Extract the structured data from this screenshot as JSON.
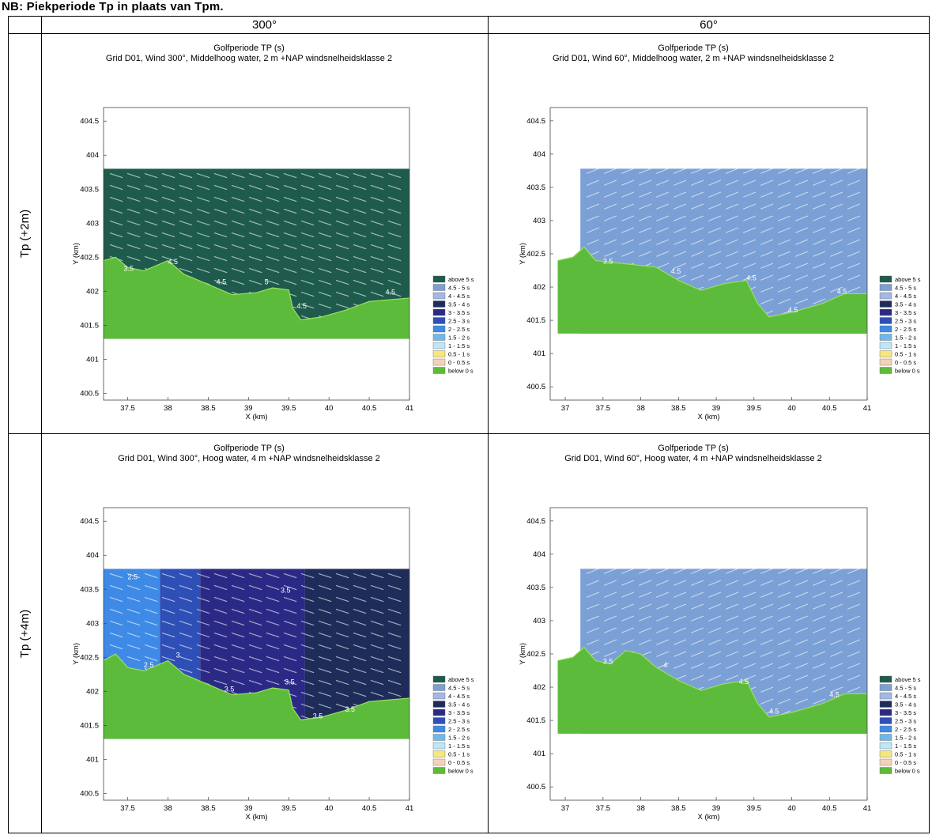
{
  "caption": "NB: Piekperiode Tp in plaats van Tpm.",
  "columns": [
    "300°",
    "60°"
  ],
  "rows": [
    "Tp (+2m)",
    "Tp (+4m)"
  ],
  "legend": {
    "labels": [
      "above 5 s",
      "4.5 - 5 s",
      "4 - 4.5 s",
      "3.5 - 4 s",
      "3 - 3.5 s",
      "2.5 - 3 s",
      "2 - 2.5 s",
      "1.5 - 2 s",
      "1 - 1.5 s",
      "0.5 - 1 s",
      "0 - 0.5 s",
      "below 0 s"
    ],
    "colors": [
      "#1e5b4c",
      "#7ba0d6",
      "#a3b7e8",
      "#1e2c5a",
      "#2a2a86",
      "#2e4fb6",
      "#3e8ae6",
      "#6fb8ee",
      "#bfe6f6",
      "#f6e77c",
      "#f6d2b4",
      "#5dbb3c"
    ]
  },
  "chart_data": [
    {
      "type": "heatmap",
      "title": "Golfperiode TP (s)",
      "subtitle": "Grid  D01, Wind 300°, Middelhoog water, 2 m +NAP windsnelheidsklasse 2",
      "xlabel": "X (km)",
      "ylabel": "Y (km)",
      "xlim": [
        37.2,
        41
      ],
      "ylim": [
        400.4,
        404.7
      ],
      "xticks": [
        "37.5",
        "38",
        "38.5",
        "39",
        "39.5",
        "40",
        "40.5",
        "41"
      ],
      "yticks": [
        "400.5",
        "401",
        "401.5",
        "402",
        "402.5",
        "403",
        "403.5",
        "404",
        "404.5"
      ],
      "water_top": 403.8,
      "land_bottom": 401.3,
      "wind_dir_deg": 300,
      "coastline": [
        [
          37.2,
          402.45
        ],
        [
          37.35,
          402.5
        ],
        [
          37.5,
          402.35
        ],
        [
          37.7,
          402.3
        ],
        [
          38.0,
          402.45
        ],
        [
          38.2,
          402.25
        ],
        [
          38.5,
          402.1
        ],
        [
          38.8,
          401.95
        ],
        [
          39.1,
          401.98
        ],
        [
          39.3,
          402.05
        ],
        [
          39.5,
          402.02
        ],
        [
          39.55,
          401.75
        ],
        [
          39.65,
          401.58
        ],
        [
          39.9,
          401.62
        ],
        [
          40.2,
          401.72
        ],
        [
          40.5,
          401.85
        ],
        [
          41.0,
          401.9
        ]
      ],
      "zones": [
        {
          "x0": 37.2,
          "x1": 41,
          "color": "#1e5b4c"
        }
      ],
      "contour_labels": [
        {
          "text": "3.5",
          "x": 37.45,
          "y": 402.3
        },
        {
          "text": "4.5",
          "x": 38.0,
          "y": 402.4
        },
        {
          "text": "4.5",
          "x": 38.6,
          "y": 402.1
        },
        {
          "text": "5",
          "x": 39.2,
          "y": 402.1
        },
        {
          "text": "4.5",
          "x": 39.6,
          "y": 401.75
        },
        {
          "text": "4.5",
          "x": 40.7,
          "y": 401.95
        }
      ]
    },
    {
      "type": "heatmap",
      "title": "Golfperiode TP (s)",
      "subtitle": "Grid  D01, Wind 60°, Middelhoog water, 2 m +NAP windsnelheidsklasse 2",
      "xlabel": "X (km)",
      "ylabel": "Y (km)",
      "xlim": [
        36.8,
        41
      ],
      "ylim": [
        400.3,
        404.7
      ],
      "xticks": [
        "37",
        "37.5",
        "38",
        "38.5",
        "39",
        "39.5",
        "40",
        "40.5",
        "41"
      ],
      "yticks": [
        "400.5",
        "401",
        "401.5",
        "402",
        "402.5",
        "403",
        "403.5",
        "404",
        "404.5"
      ],
      "water_top": 403.78,
      "land_bottom": 401.3,
      "wind_dir_deg": 60,
      "coastline": [
        [
          36.9,
          402.4
        ],
        [
          37.1,
          402.45
        ],
        [
          37.25,
          402.6
        ],
        [
          37.4,
          402.4
        ],
        [
          37.8,
          402.35
        ],
        [
          38.2,
          402.3
        ],
        [
          38.5,
          402.1
        ],
        [
          38.8,
          401.95
        ],
        [
          39.1,
          402.05
        ],
        [
          39.4,
          402.1
        ],
        [
          39.55,
          401.75
        ],
        [
          39.7,
          401.55
        ],
        [
          40.0,
          401.62
        ],
        [
          40.4,
          401.75
        ],
        [
          40.7,
          401.9
        ],
        [
          41.0,
          401.9
        ]
      ],
      "zones": [
        {
          "x0": 36.8,
          "x1": 41,
          "color": "#7ba0d6"
        }
      ],
      "contour_labels": [
        {
          "text": "3.5",
          "x": 37.5,
          "y": 402.35
        },
        {
          "text": "4.5",
          "x": 38.4,
          "y": 402.2
        },
        {
          "text": "4.5",
          "x": 39.4,
          "y": 402.1
        },
        {
          "text": "4.5",
          "x": 39.95,
          "y": 401.62
        },
        {
          "text": "4.5",
          "x": 40.6,
          "y": 401.9
        }
      ]
    },
    {
      "type": "heatmap",
      "title": "Golfperiode TP (s)",
      "subtitle": "Grid  D01, Wind 300°, Hoog water, 4 m +NAP windsnelheidsklasse 2",
      "xlabel": "X (km)",
      "ylabel": "Y (km)",
      "xlim": [
        37.2,
        41
      ],
      "ylim": [
        400.4,
        404.7
      ],
      "xticks": [
        "37.5",
        "38",
        "38.5",
        "39",
        "39.5",
        "40",
        "40.5",
        "41"
      ],
      "yticks": [
        "400.5",
        "401",
        "401.5",
        "402",
        "402.5",
        "403",
        "403.5",
        "404",
        "404.5"
      ],
      "water_top": 403.8,
      "land_bottom": 401.3,
      "wind_dir_deg": 300,
      "coastline": [
        [
          37.2,
          402.45
        ],
        [
          37.35,
          402.55
        ],
        [
          37.5,
          402.35
        ],
        [
          37.7,
          402.3
        ],
        [
          38.0,
          402.45
        ],
        [
          38.2,
          402.25
        ],
        [
          38.5,
          402.1
        ],
        [
          38.8,
          401.95
        ],
        [
          39.1,
          401.98
        ],
        [
          39.3,
          402.05
        ],
        [
          39.5,
          402.02
        ],
        [
          39.55,
          401.75
        ],
        [
          39.65,
          401.58
        ],
        [
          39.9,
          401.62
        ],
        [
          40.2,
          401.72
        ],
        [
          40.5,
          401.85
        ],
        [
          41.0,
          401.9
        ]
      ],
      "zones": [
        {
          "x0": 37.2,
          "x1": 37.9,
          "color": "#3e8ae6"
        },
        {
          "x0": 37.9,
          "x1": 38.4,
          "color": "#2e4fb6"
        },
        {
          "x0": 38.4,
          "x1": 39.7,
          "color": "#2a2a86"
        },
        {
          "x0": 39.7,
          "x1": 41,
          "color": "#1e2c5a"
        }
      ],
      "contour_labels": [
        {
          "text": "2.5",
          "x": 37.5,
          "y": 403.65
        },
        {
          "text": "2.5",
          "x": 37.7,
          "y": 402.35
        },
        {
          "text": "3",
          "x": 38.1,
          "y": 402.5
        },
        {
          "text": "3.5",
          "x": 39.4,
          "y": 403.45
        },
        {
          "text": "3.5",
          "x": 38.7,
          "y": 402.0
        },
        {
          "text": "3.5",
          "x": 39.45,
          "y": 402.1
        },
        {
          "text": "3.5",
          "x": 39.8,
          "y": 401.6
        },
        {
          "text": "3.5",
          "x": 40.2,
          "y": 401.7
        }
      ]
    },
    {
      "type": "heatmap",
      "title": "Golfperiode TP (s)",
      "subtitle": "Grid  D01, Wind 60°, Hoog water, 4 m +NAP windsnelheidsklasse 2",
      "xlabel": "X (km)",
      "ylabel": "Y (km)",
      "xlim": [
        36.8,
        41
      ],
      "ylim": [
        400.3,
        404.7
      ],
      "xticks": [
        "37",
        "37.5",
        "38",
        "38.5",
        "39",
        "39.5",
        "40",
        "40.5",
        "41"
      ],
      "yticks": [
        "400.5",
        "401",
        "401.5",
        "402",
        "402.5",
        "403",
        "403.5",
        "404",
        "404.5"
      ],
      "water_top": 403.78,
      "land_bottom": 401.3,
      "wind_dir_deg": 60,
      "coastline": [
        [
          36.9,
          402.4
        ],
        [
          37.1,
          402.45
        ],
        [
          37.25,
          402.6
        ],
        [
          37.4,
          402.4
        ],
        [
          37.6,
          402.35
        ],
        [
          37.8,
          402.55
        ],
        [
          38.0,
          402.5
        ],
        [
          38.2,
          402.3
        ],
        [
          38.5,
          402.1
        ],
        [
          38.8,
          401.95
        ],
        [
          39.1,
          402.05
        ],
        [
          39.4,
          402.1
        ],
        [
          39.55,
          401.75
        ],
        [
          39.7,
          401.55
        ],
        [
          40.0,
          401.62
        ],
        [
          40.4,
          401.75
        ],
        [
          40.7,
          401.9
        ],
        [
          41.0,
          401.9
        ]
      ],
      "zones": [
        {
          "x0": 36.8,
          "x1": 41,
          "color": "#7ba0d6"
        }
      ],
      "contour_labels": [
        {
          "text": "3.5",
          "x": 37.5,
          "y": 402.35
        },
        {
          "text": "4",
          "x": 38.3,
          "y": 402.3
        },
        {
          "text": "4.5",
          "x": 39.3,
          "y": 402.05
        },
        {
          "text": "4.5",
          "x": 39.7,
          "y": 401.6
        },
        {
          "text": "4.5",
          "x": 40.5,
          "y": 401.85
        }
      ]
    }
  ]
}
